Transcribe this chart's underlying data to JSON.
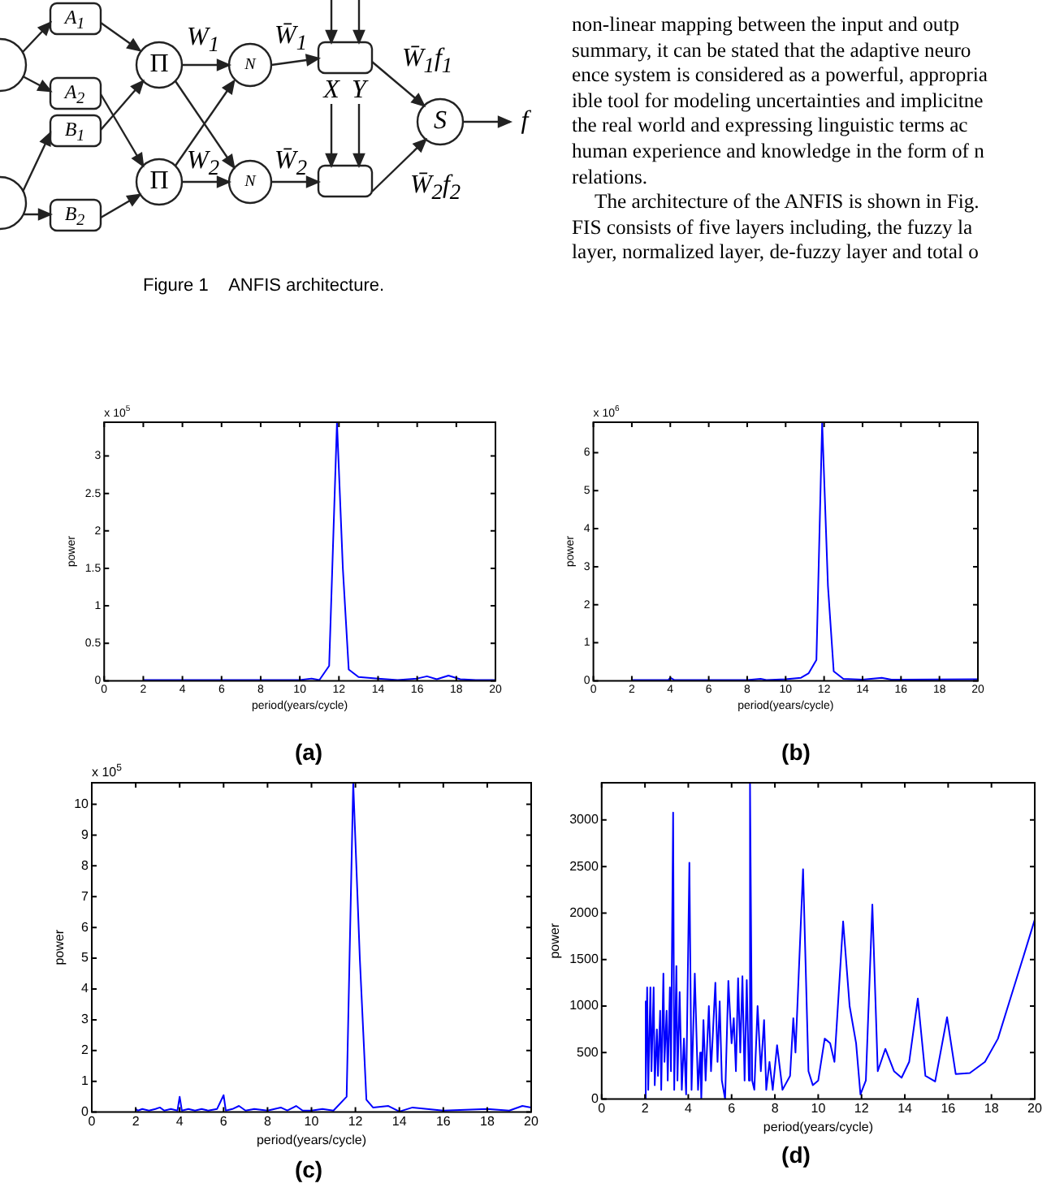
{
  "chart_data": [
    {
      "type": "other",
      "title": "Figure 1    ANFIS architecture.",
      "annotations": [
        "A$_{1}$",
        "A$_{2}$",
        "B$_{1}$",
        "B$_{2}$",
        "Π",
        "Π",
        "N",
        "N",
        "W$_{1}$",
        "W$_{2}$",
        "W̄$_{1}$",
        "W̄$_{2}$",
        "W̄$_{1}$f$_{1}$",
        "W̄$_{2}$f$_{2}$",
        "X",
        "Y",
        "S",
        "f",
        "non-linear mapping between the input and outp",
        "summary, it can be stated that the adaptive neuro",
        "ence system is considered as a powerful, appropria",
        "ible tool for modeling uncertainties and implicitne",
        "the real world and expressing linguistic terms ac",
        "human experience and knowledge in the form of n",
        "relations.",
        "The architecture of the ANFIS is shown in Fig.",
        "FIS consists of five layers including, the fuzzy la",
        "layer, normalized layer, de-fuzzy layer and total o"
      ]
    },
    {
      "type": "line",
      "title": "(a)",
      "xlabel": "period(years/cycle)",
      "ylabel": "power",
      "annotations": [
        "x 10$^{5}$"
      ],
      "xlim": [
        0,
        20
      ],
      "xticks": [
        0,
        2,
        4,
        6,
        8,
        10,
        12,
        14,
        16,
        18,
        20
      ],
      "ylim": [
        0,
        3.45
      ],
      "yticks": [
        0,
        0.5,
        1,
        1.5,
        2,
        2.5,
        3
      ],
      "grid": false,
      "legend": false,
      "series": [
        {
          "color": "#0000ff",
          "x": [
            2,
            4,
            6,
            8,
            10,
            10.6,
            11,
            11.5,
            11.9,
            12.2,
            12.5,
            13,
            14,
            15,
            16,
            16.5,
            17,
            17.6,
            18.2,
            19,
            20
          ],
          "values": [
            0.01,
            0.01,
            0.01,
            0.01,
            0.01,
            0.03,
            0.01,
            0.2,
            3.45,
            1.5,
            0.15,
            0.05,
            0.03,
            0.01,
            0.03,
            0.06,
            0.02,
            0.07,
            0.02,
            0.01,
            0.01
          ]
        }
      ]
    },
    {
      "type": "line",
      "title": "(b)",
      "xlabel": "period(years/cycle)",
      "ylabel": "power",
      "annotations": [
        "x 10$^{6}$"
      ],
      "xlim": [
        0,
        20
      ],
      "xticks": [
        0,
        2,
        4,
        6,
        8,
        10,
        12,
        14,
        16,
        18,
        20
      ],
      "ylim": [
        0,
        6.8
      ],
      "yticks": [
        0,
        1,
        2,
        3,
        4,
        5,
        6
      ],
      "grid": false,
      "legend": false,
      "series": [
        {
          "color": "#0000ff",
          "x": [
            2,
            3.9,
            4,
            4.2,
            8,
            8.7,
            9,
            10,
            10.8,
            11.2,
            11.6,
            11.9,
            12.2,
            12.5,
            13,
            14,
            15,
            15.5,
            16,
            20
          ],
          "values": [
            0.02,
            0.02,
            0.08,
            0.02,
            0.02,
            0.05,
            0.02,
            0.04,
            0.08,
            0.2,
            0.55,
            6.8,
            2.5,
            0.25,
            0.05,
            0.03,
            0.08,
            0.03,
            0.03,
            0.04
          ]
        }
      ]
    },
    {
      "type": "line",
      "title": "(c)",
      "xlabel": "period(years/cycle)",
      "ylabel": "power",
      "annotations": [
        "x 10$^{5}$"
      ],
      "xlim": [
        0,
        20
      ],
      "xticks": [
        0,
        2,
        4,
        6,
        8,
        10,
        12,
        14,
        16,
        18,
        20
      ],
      "ylim": [
        0,
        10.7
      ],
      "yticks": [
        0,
        1,
        2,
        3,
        4,
        5,
        6,
        7,
        8,
        9,
        10
      ],
      "grid": false,
      "legend": false,
      "series": [
        {
          "color": "#0000ff",
          "x": [
            2,
            2.1,
            2.3,
            2.6,
            2.9,
            3.1,
            3.3,
            3.6,
            3.9,
            4,
            4.1,
            4.4,
            4.7,
            5,
            5.3,
            5.7,
            6,
            6.1,
            6.4,
            6.7,
            7,
            7.4,
            8,
            8.6,
            8.9,
            9.3,
            9.6,
            10,
            10.5,
            11,
            11.6,
            11.9,
            12.2,
            12.5,
            12.8,
            13.5,
            14,
            14.6,
            16,
            18,
            19,
            19.6,
            20
          ],
          "values": [
            0.1,
            0.05,
            0.1,
            0.05,
            0.1,
            0.15,
            0.05,
            0.1,
            0.05,
            0.5,
            0.05,
            0.1,
            0.05,
            0.1,
            0.05,
            0.1,
            0.55,
            0.05,
            0.1,
            0.2,
            0.05,
            0.1,
            0.05,
            0.15,
            0.05,
            0.2,
            0.05,
            0.05,
            0.1,
            0.05,
            0.5,
            10.7,
            5,
            0.4,
            0.15,
            0.2,
            0.02,
            0.15,
            0.05,
            0.1,
            0.05,
            0.2,
            0.15
          ]
        }
      ]
    },
    {
      "type": "line",
      "title": "(d)",
      "xlabel": "period(years/cycle)",
      "ylabel": "power",
      "xlim": [
        0,
        20
      ],
      "xticks": [
        0,
        2,
        4,
        6,
        8,
        10,
        12,
        14,
        16,
        18,
        20
      ],
      "ylim": [
        0,
        3400
      ],
      "yticks": [
        0,
        500,
        1000,
        1500,
        2000,
        2500,
        3000
      ],
      "grid": false,
      "legend": false,
      "series": [
        {
          "color": "#0000ff",
          "x": [
            2,
            2.02,
            2.05,
            2.1,
            2.15,
            2.25,
            2.3,
            2.4,
            2.45,
            2.55,
            2.6,
            2.7,
            2.75,
            2.85,
            2.9,
            3,
            3.05,
            3.15,
            3.2,
            3.3,
            3.35,
            3.45,
            3.5,
            3.6,
            3.7,
            3.8,
            3.9,
            4.05,
            4.15,
            4.3,
            4.45,
            4.55,
            4.6,
            4.7,
            4.8,
            4.95,
            5.05,
            5.25,
            5.35,
            5.45,
            5.55,
            5.7,
            5.85,
            6,
            6.1,
            6.2,
            6.3,
            6.4,
            6.5,
            6.6,
            6.7,
            6.8,
            6.85,
            6.95,
            7.05,
            7.2,
            7.35,
            7.5,
            7.6,
            7.75,
            7.9,
            8.1,
            8.35,
            8.7,
            8.85,
            8.95,
            9.3,
            9.55,
            9.75,
            10,
            10.3,
            10.55,
            10.75,
            11.15,
            11.45,
            11.75,
            11.95,
            12.2,
            12.5,
            12.75,
            13.1,
            13.5,
            13.85,
            14.2,
            14.6,
            14.95,
            15.4,
            15.95,
            16.35,
            17,
            17.7,
            18.3,
            18.9,
            19.5,
            20
          ],
          "values": [
            0,
            1050,
            200,
            1200,
            100,
            1200,
            300,
            1200,
            150,
            750,
            250,
            950,
            100,
            1350,
            400,
            950,
            200,
            1200,
            300,
            3080,
            100,
            1430,
            200,
            1150,
            100,
            650,
            50,
            2540,
            100,
            1350,
            100,
            500,
            0,
            850,
            200,
            1000,
            300,
            1250,
            400,
            1050,
            200,
            0,
            1270,
            600,
            870,
            300,
            1300,
            500,
            1320,
            200,
            1280,
            200,
            3400,
            200,
            100,
            1000,
            300,
            850,
            100,
            400,
            100,
            580,
            100,
            250,
            870,
            500,
            2470,
            300,
            150,
            200,
            650,
            600,
            400,
            1910,
            1000,
            600,
            50,
            200,
            2090,
            300,
            540,
            300,
            230,
            400,
            1080,
            250,
            190,
            880,
            270,
            280,
            400,
            650,
            1100,
            1550,
            1930
          ]
        }
      ]
    }
  ]
}
